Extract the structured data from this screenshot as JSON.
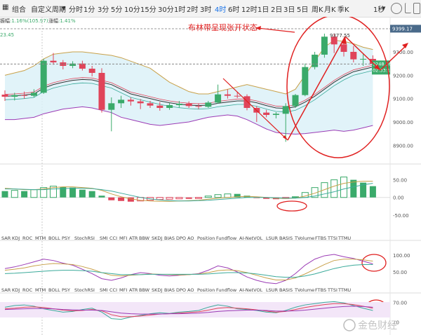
{
  "toolbar": {
    "left_item": "组合",
    "custom_period": "自定义周期",
    "periods": [
      {
        "label": "分时",
        "active": false
      },
      {
        "label": "1分",
        "active": false
      },
      {
        "label": "3分",
        "active": false
      },
      {
        "label": "5分",
        "active": false
      },
      {
        "label": "10分",
        "active": false
      },
      {
        "label": "15分",
        "active": false
      },
      {
        "label": "30分",
        "active": false
      },
      {
        "label": "1时",
        "active": false
      },
      {
        "label": "2时",
        "active": false
      },
      {
        "label": "3时",
        "active": false
      },
      {
        "label": "4时",
        "active": true
      },
      {
        "label": "6时",
        "active": false
      },
      {
        "label": "12时",
        "active": false
      },
      {
        "label": "1日",
        "active": false
      },
      {
        "label": "2日",
        "active": false
      },
      {
        "label": "3日",
        "active": false
      },
      {
        "label": "5日",
        "active": false
      },
      {
        "label": "周K",
        "active": false
      },
      {
        "label": "月K",
        "active": false
      },
      {
        "label": "季K",
        "active": false
      }
    ],
    "right_label": "1秒",
    "icons": [
      "camera-icon",
      "edit-icon",
      "grid-icon",
      "fullscreen-icon"
    ]
  },
  "info": {
    "amp_label": "振幅",
    "amp_value": ":1.16%(105.97)",
    "change_label": "涨幅",
    "change_value": ":1.41%",
    "left_value": "23.45"
  },
  "annotation": {
    "text": "布林带呈现张开状态",
    "peak_label": "9377.55",
    "color": "#e02020"
  },
  "price_tags": {
    "top": "9399.17",
    "current": "9248.26",
    "countdown": "02:33:11"
  },
  "colors": {
    "up": "#3aaa6a",
    "down": "#e0445a",
    "boll_upper": "#c8a14a",
    "boll_mid": "#333333",
    "boll_lower": "#9b3bb5",
    "band_fill": "#d9f0f7"
  },
  "indicator_tabs_1": [
    "SAR",
    "KDJ",
    "ROC",
    "MTM",
    "BOLL",
    "PSY",
    "StochRSI",
    "SMI",
    "CCI",
    "MFI",
    "ATR",
    "BBW",
    "SKDJ",
    "BIAS",
    "DPO",
    "AO",
    "Position",
    "Fundflow",
    "AI-NetVOL",
    "LSUR",
    "BASIS",
    "TVolume",
    "FTBS",
    "TTSI",
    "TTMU"
  ],
  "indicator_tabs_2": [
    "SAR",
    "KDJ",
    "ROC",
    "MTM",
    "BOLL",
    "PSY",
    "StochRSI",
    "SMI",
    "CCI",
    "MFI",
    "ATR",
    "BBW",
    "SKDJ",
    "BIAS",
    "DPO",
    "AO",
    "Position",
    "Fundflow",
    "AI-NetVOL",
    "LSUR",
    "BASIS",
    "TVolume",
    "FTBS",
    "TTSI",
    "TTMU"
  ],
  "watermark": "金色财经",
  "chart_data": [
    {
      "type": "candlestick",
      "ylim": [
        8850,
        9420
      ],
      "yticks": [
        "9300.00",
        "9200.00",
        "9100.00",
        "9000.00",
        "8900.00"
      ],
      "candles": [
        {
          "o": 9117,
          "h": 9135,
          "l": 9090,
          "c": 9108
        },
        {
          "o": 9108,
          "h": 9125,
          "l": 9092,
          "c": 9115
        },
        {
          "o": 9115,
          "h": 9130,
          "l": 9100,
          "c": 9112
        },
        {
          "o": 9112,
          "h": 9140,
          "l": 9105,
          "c": 9125
        },
        {
          "o": 9125,
          "h": 9270,
          "l": 9120,
          "c": 9262
        },
        {
          "o": 9262,
          "h": 9295,
          "l": 9245,
          "c": 9255
        },
        {
          "o": 9255,
          "h": 9265,
          "l": 9225,
          "c": 9240
        },
        {
          "o": 9240,
          "h": 9260,
          "l": 9230,
          "c": 9250
        },
        {
          "o": 9250,
          "h": 9262,
          "l": 9220,
          "c": 9228
        },
        {
          "o": 9228,
          "h": 9240,
          "l": 9195,
          "c": 9210
        },
        {
          "o": 9210,
          "h": 9230,
          "l": 9040,
          "c": 9052
        },
        {
          "o": 9052,
          "h": 9105,
          "l": 8960,
          "c": 9080
        },
        {
          "o": 9080,
          "h": 9112,
          "l": 9060,
          "c": 9095
        },
        {
          "o": 9095,
          "h": 9105,
          "l": 9070,
          "c": 9088
        },
        {
          "o": 9088,
          "h": 9098,
          "l": 9055,
          "c": 9080
        },
        {
          "o": 9080,
          "h": 9090,
          "l": 9060,
          "c": 9070
        },
        {
          "o": 9070,
          "h": 9085,
          "l": 9048,
          "c": 9060
        },
        {
          "o": 9060,
          "h": 9082,
          "l": 9052,
          "c": 9072
        },
        {
          "o": 9072,
          "h": 9090,
          "l": 9062,
          "c": 9078
        },
        {
          "o": 9078,
          "h": 9088,
          "l": 9060,
          "c": 9068
        },
        {
          "o": 9068,
          "h": 9080,
          "l": 9055,
          "c": 9065
        },
        {
          "o": 9065,
          "h": 9090,
          "l": 9060,
          "c": 9083
        },
        {
          "o": 9083,
          "h": 9160,
          "l": 9078,
          "c": 9118
        },
        {
          "o": 9118,
          "h": 9140,
          "l": 9100,
          "c": 9112
        },
        {
          "o": 9112,
          "h": 9128,
          "l": 9102,
          "c": 9110
        },
        {
          "o": 9110,
          "h": 9118,
          "l": 9050,
          "c": 9060
        },
        {
          "o": 9060,
          "h": 9068,
          "l": 9000,
          "c": 9040
        },
        {
          "o": 9040,
          "h": 9052,
          "l": 9020,
          "c": 9030
        },
        {
          "o": 9030,
          "h": 9042,
          "l": 9015,
          "c": 9035
        },
        {
          "o": 9035,
          "h": 9080,
          "l": 8915,
          "c": 9068
        },
        {
          "o": 9068,
          "h": 9120,
          "l": 9060,
          "c": 9115
        },
        {
          "o": 9115,
          "h": 9250,
          "l": 9110,
          "c": 9235
        },
        {
          "o": 9235,
          "h": 9300,
          "l": 9225,
          "c": 9288
        },
        {
          "o": 9288,
          "h": 9378,
          "l": 9275,
          "c": 9365
        },
        {
          "o": 9365,
          "h": 9377,
          "l": 9295,
          "c": 9332
        },
        {
          "o": 9332,
          "h": 9350,
          "l": 9280,
          "c": 9300
        },
        {
          "o": 9300,
          "h": 9325,
          "l": 9255,
          "c": 9268
        },
        {
          "o": 9268,
          "h": 9290,
          "l": 9240,
          "c": 9270
        },
        {
          "o": 9270,
          "h": 9285,
          "l": 9235,
          "c": 9248
        }
      ],
      "boll_upper": [
        9200,
        9210,
        9220,
        9240,
        9270,
        9290,
        9295,
        9300,
        9300,
        9295,
        9290,
        9285,
        9275,
        9260,
        9245,
        9230,
        9200,
        9170,
        9150,
        9130,
        9120,
        9120,
        9130,
        9140,
        9150,
        9160,
        9150,
        9140,
        9130,
        9120,
        9140,
        9200,
        9260,
        9320,
        9350,
        9345,
        9335,
        9320,
        9310
      ],
      "boll_mid": [
        9110,
        9112,
        9115,
        9120,
        9145,
        9160,
        9170,
        9178,
        9182,
        9180,
        9170,
        9160,
        9140,
        9120,
        9110,
        9100,
        9090,
        9082,
        9076,
        9072,
        9070,
        9072,
        9080,
        9085,
        9090,
        9090,
        9082,
        9070,
        9060,
        9058,
        9065,
        9085,
        9110,
        9140,
        9170,
        9195,
        9215,
        9225,
        9235
      ],
      "boll_lower": [
        9010,
        9010,
        9015,
        9020,
        9035,
        9045,
        9055,
        9060,
        9065,
        9060,
        9050,
        9040,
        9020,
        9010,
        9000,
        8990,
        8985,
        8990,
        8995,
        9000,
        9010,
        9020,
        9025,
        9030,
        9025,
        9010,
        8990,
        8970,
        8955,
        8950,
        8948,
        8950,
        8955,
        8960,
        8965,
        8960,
        8965,
        8975,
        8985
      ]
    },
    {
      "type": "bar",
      "ylim": [
        -100,
        75
      ],
      "yticks": [
        "50.00",
        "0.00",
        "-50.00"
      ],
      "values": [
        18,
        20,
        18,
        22,
        28,
        32,
        30,
        28,
        22,
        18,
        5,
        -8,
        -10,
        -12,
        -10,
        -8,
        -6,
        -5,
        -4,
        -4,
        -3,
        4,
        8,
        10,
        10,
        5,
        -2,
        -4,
        -5,
        -3,
        2,
        14,
        28,
        42,
        50,
        58,
        50,
        42,
        32
      ],
      "line1": [
        26,
        24,
        22,
        22,
        24,
        28,
        30,
        30,
        28,
        26,
        20,
        10,
        2,
        -4,
        -8,
        -10,
        -11,
        -11,
        -10,
        -9,
        -8,
        -5,
        -2,
        0,
        2,
        3,
        2,
        0,
        -2,
        -3,
        -2,
        4,
        12,
        22,
        32,
        40,
        44,
        46,
        46
      ],
      "line2": [
        24,
        24,
        23,
        22,
        22,
        24,
        25,
        26,
        26,
        25,
        22,
        18,
        12,
        6,
        0,
        -4,
        -7,
        -9,
        -10,
        -10,
        -9,
        -8,
        -6,
        -4,
        -2,
        0,
        0,
        0,
        -1,
        -2,
        -2,
        0,
        4,
        10,
        16,
        24,
        30,
        36,
        40
      ]
    },
    {
      "type": "line",
      "ylim": [
        0,
        125
      ],
      "yticks": [
        "100.00",
        "50.00"
      ],
      "series": [
        {
          "color": "#9b3bb5",
          "values": [
            60,
            65,
            72,
            80,
            88,
            84,
            76,
            70,
            58,
            45,
            30,
            25,
            32,
            42,
            48,
            45,
            40,
            38,
            40,
            42,
            45,
            55,
            68,
            62,
            50,
            35,
            25,
            18,
            15,
            25,
            45,
            70,
            88,
            98,
            102,
            95,
            90,
            82,
            74
          ]
        },
        {
          "color": "#c8a14a",
          "values": [
            55,
            58,
            62,
            68,
            72,
            75,
            74,
            72,
            66,
            58,
            48,
            40,
            38,
            40,
            42,
            44,
            43,
            42,
            41,
            42,
            44,
            48,
            54,
            56,
            54,
            48,
            40,
            32,
            26,
            26,
            32,
            44,
            58,
            72,
            84,
            88,
            88,
            86,
            82
          ]
        },
        {
          "color": "#3aaa9a",
          "values": [
            45,
            46,
            48,
            50,
            52,
            54,
            55,
            55,
            54,
            52,
            48,
            45,
            42,
            42,
            42,
            43,
            43,
            43,
            43,
            43,
            43,
            44,
            46,
            48,
            48,
            47,
            44,
            40,
            36,
            34,
            34,
            38,
            44,
            52,
            60,
            66,
            70,
            72,
            72
          ]
        }
      ]
    },
    {
      "type": "line",
      "ylim": [
        0,
        90
      ],
      "yticks": [
        "70.00",
        "10"
      ],
      "series": [
        {
          "color": "#3aaa9a",
          "values": [
            55,
            60,
            62,
            58,
            50,
            45,
            40,
            42,
            48,
            52,
            40,
            20,
            18,
            25,
            30,
            35,
            38,
            36,
            40,
            42,
            45,
            55,
            62,
            58,
            50,
            48,
            45,
            40,
            38,
            45,
            55,
            62,
            66,
            70,
            72,
            68,
            60,
            52,
            45
          ]
        },
        {
          "color": "#e0445a",
          "values": [
            50,
            52,
            55,
            56,
            54,
            50,
            46,
            44,
            45,
            48,
            44,
            32,
            26,
            26,
            28,
            31,
            34,
            35,
            37,
            39,
            41,
            46,
            52,
            54,
            52,
            50,
            47,
            43,
            40,
            42,
            48,
            54,
            59,
            63,
            66,
            66,
            63,
            58,
            52
          ]
        },
        {
          "color": "#9b3bb5",
          "values": [
            48,
            49,
            50,
            51,
            51,
            50,
            48,
            47,
            46,
            46,
            45,
            41,
            37,
            35,
            34,
            34,
            34,
            35,
            35,
            36,
            37,
            39,
            42,
            44,
            45,
            46,
            46,
            45,
            43,
            43,
            44,
            46,
            49,
            52,
            55,
            57,
            58,
            57,
            55
          ]
        }
      ]
    }
  ]
}
